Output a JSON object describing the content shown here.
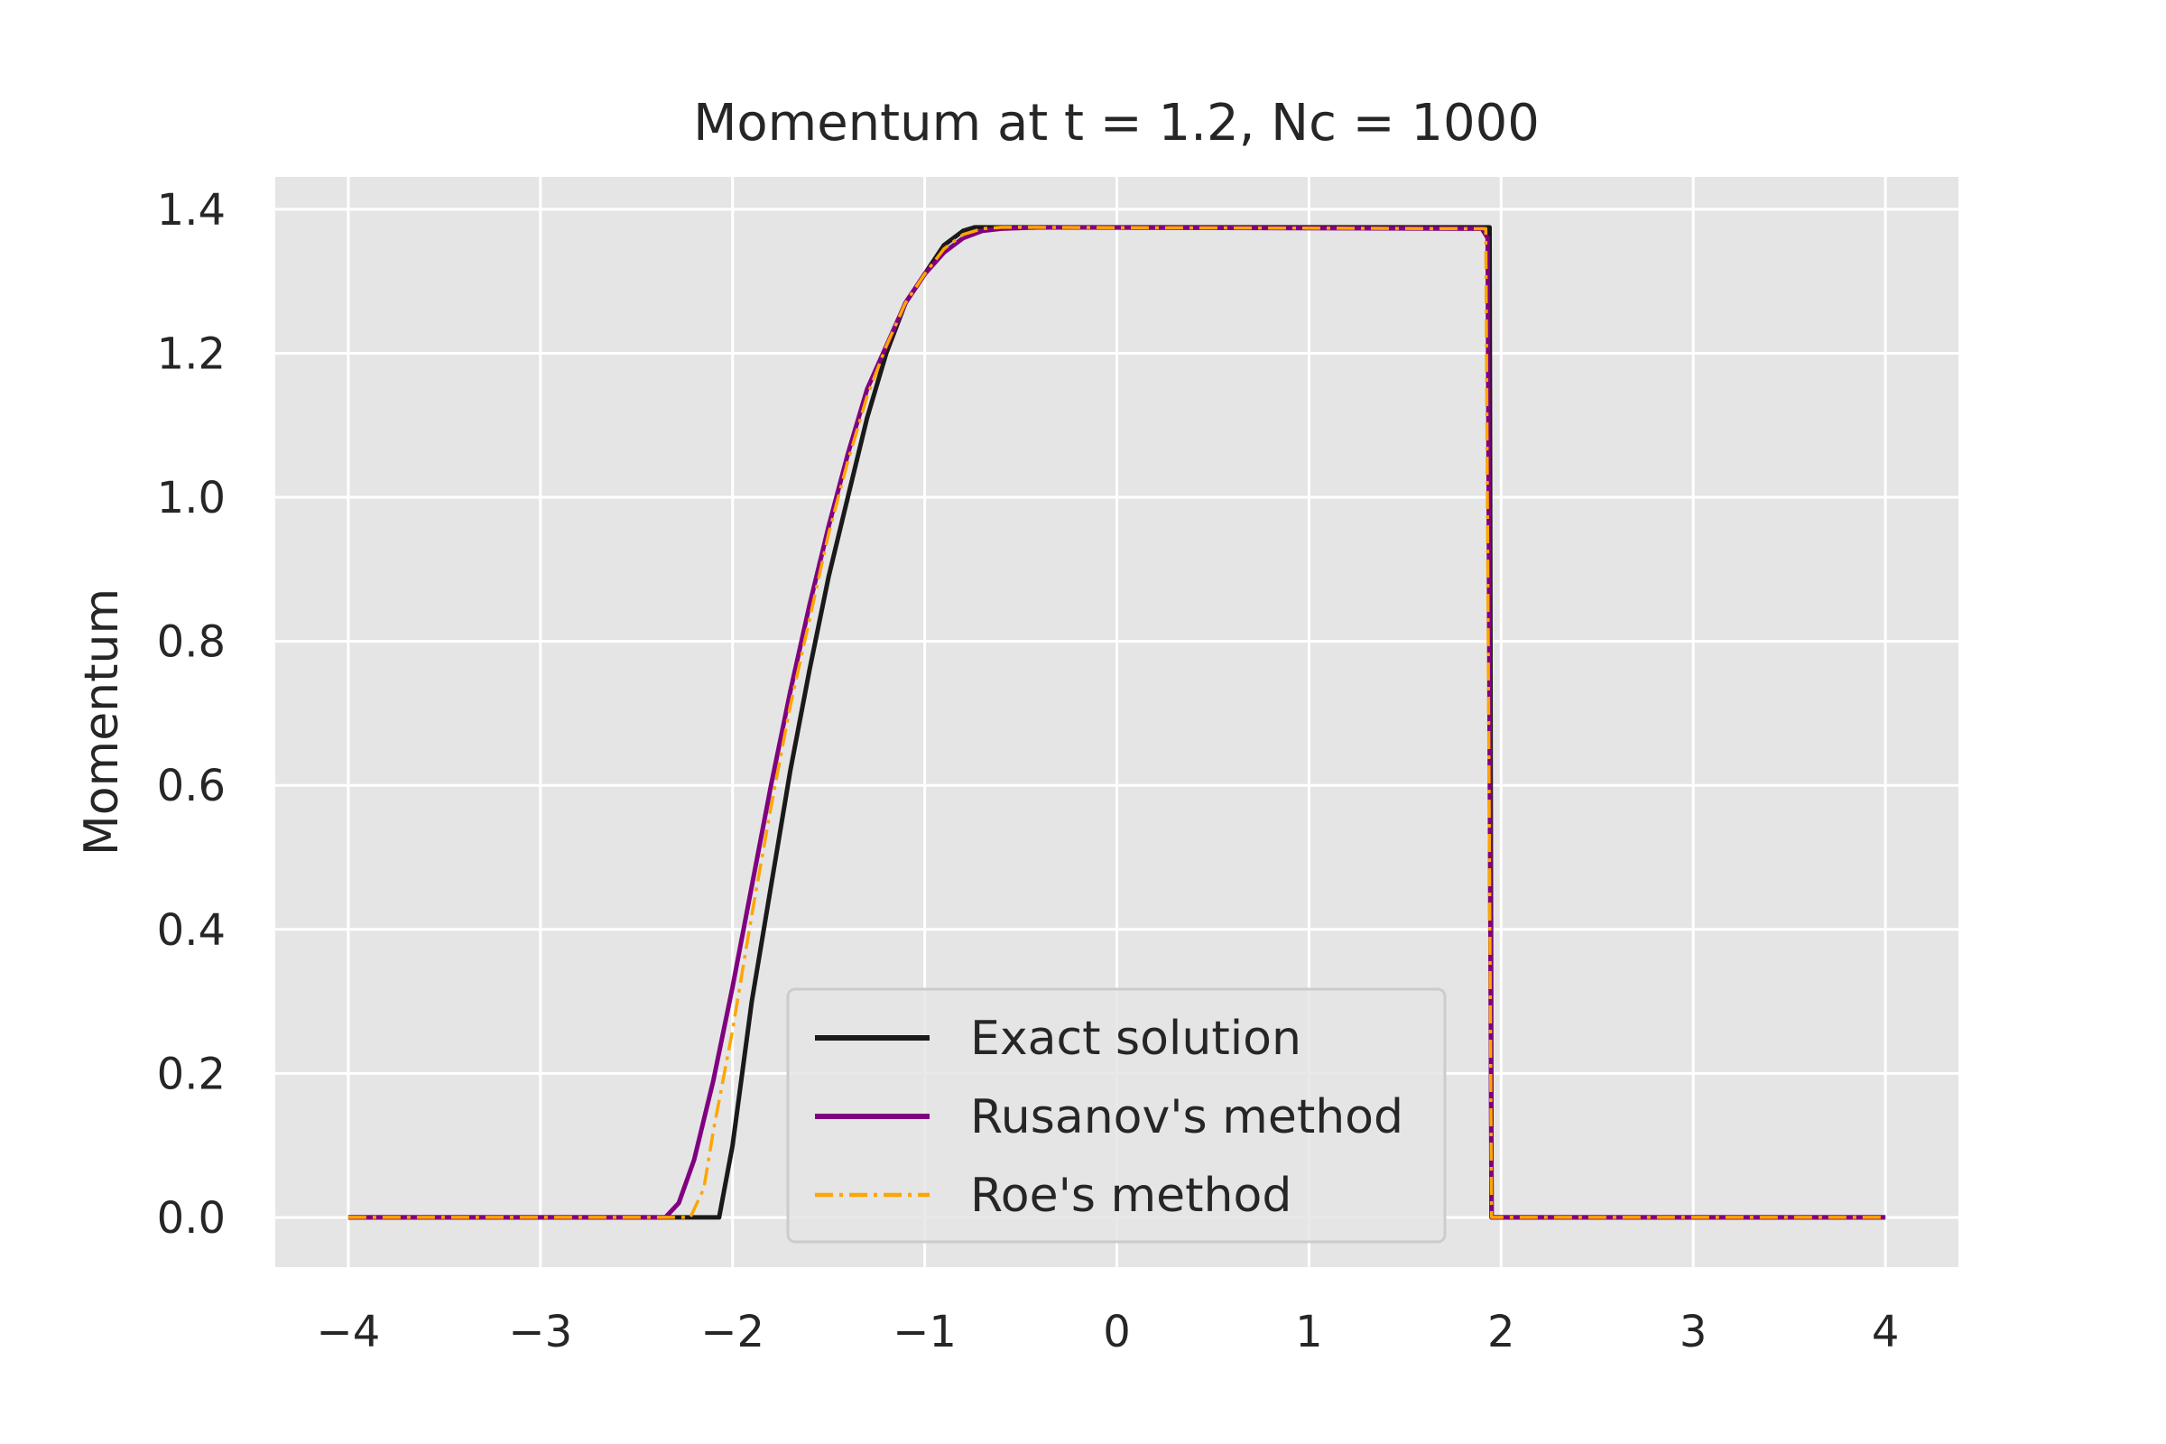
{
  "chart_data": {
    "type": "line",
    "title": "Momentum at t = 1.2, Nc = 1000",
    "xlabel": "",
    "ylabel": "Momentum",
    "xlim": [
      -4.38,
      4.38
    ],
    "ylim": [
      -0.069,
      1.445
    ],
    "x_ticks": [
      -4,
      -3,
      -2,
      -1,
      0,
      1,
      2,
      3,
      4
    ],
    "x_tick_labels": [
      "−4",
      "−3",
      "−2",
      "−1",
      "0",
      "1",
      "2",
      "3",
      "4"
    ],
    "y_ticks": [
      0.0,
      0.2,
      0.4,
      0.6,
      0.8,
      1.0,
      1.2,
      1.4
    ],
    "y_tick_labels": [
      "0.0",
      "0.2",
      "0.4",
      "0.6",
      "0.8",
      "1.0",
      "1.2",
      "1.4"
    ],
    "grid": true,
    "background": "#e5e5e5",
    "legend_position": "lower-center",
    "series": [
      {
        "name": "Exact solution",
        "color": "#1a1a1a",
        "style": "solid",
        "x": [
          -4.0,
          -2.07,
          -2.0,
          -1.9,
          -1.8,
          -1.7,
          -1.6,
          -1.5,
          -1.4,
          -1.3,
          -1.2,
          -1.1,
          -1.0,
          -0.9,
          -0.8,
          -0.74,
          1.94,
          1.95,
          4.0
        ],
        "y": [
          0.0,
          0.0,
          0.1,
          0.3,
          0.46,
          0.62,
          0.76,
          0.89,
          1.0,
          1.11,
          1.2,
          1.27,
          1.31,
          1.35,
          1.37,
          1.375,
          1.375,
          0.0,
          0.0
        ]
      },
      {
        "name": "Rusanov's method",
        "color": "#800080",
        "style": "solid",
        "x": [
          -4.0,
          -2.35,
          -2.28,
          -2.2,
          -2.1,
          -2.0,
          -1.9,
          -1.8,
          -1.7,
          -1.6,
          -1.5,
          -1.4,
          -1.3,
          -1.2,
          -1.1,
          -1.0,
          -0.9,
          -0.8,
          -0.7,
          -0.6,
          -0.5,
          -0.4,
          1.9,
          1.93,
          1.95,
          4.0
        ],
        "y": [
          0.0,
          0.0,
          0.02,
          0.08,
          0.19,
          0.32,
          0.46,
          0.6,
          0.73,
          0.85,
          0.96,
          1.06,
          1.15,
          1.21,
          1.27,
          1.31,
          1.34,
          1.36,
          1.37,
          1.373,
          1.374,
          1.375,
          1.373,
          1.36,
          0.0,
          0.0
        ]
      },
      {
        "name": "Roe's method",
        "color": "#ffa500",
        "style": "dashdot",
        "x": [
          -4.0,
          -2.22,
          -2.15,
          -2.1,
          -2.0,
          -1.9,
          -1.8,
          -1.7,
          -1.6,
          -1.5,
          -1.4,
          -1.3,
          -1.2,
          -1.1,
          -1.0,
          -0.9,
          -0.8,
          -0.7,
          -0.6,
          -0.5,
          1.92,
          1.95,
          4.0
        ],
        "y": [
          0.0,
          0.0,
          0.04,
          0.12,
          0.26,
          0.42,
          0.57,
          0.71,
          0.83,
          0.95,
          1.05,
          1.14,
          1.21,
          1.27,
          1.31,
          1.345,
          1.365,
          1.373,
          1.375,
          1.375,
          1.373,
          0.0,
          0.0
        ]
      }
    ]
  }
}
